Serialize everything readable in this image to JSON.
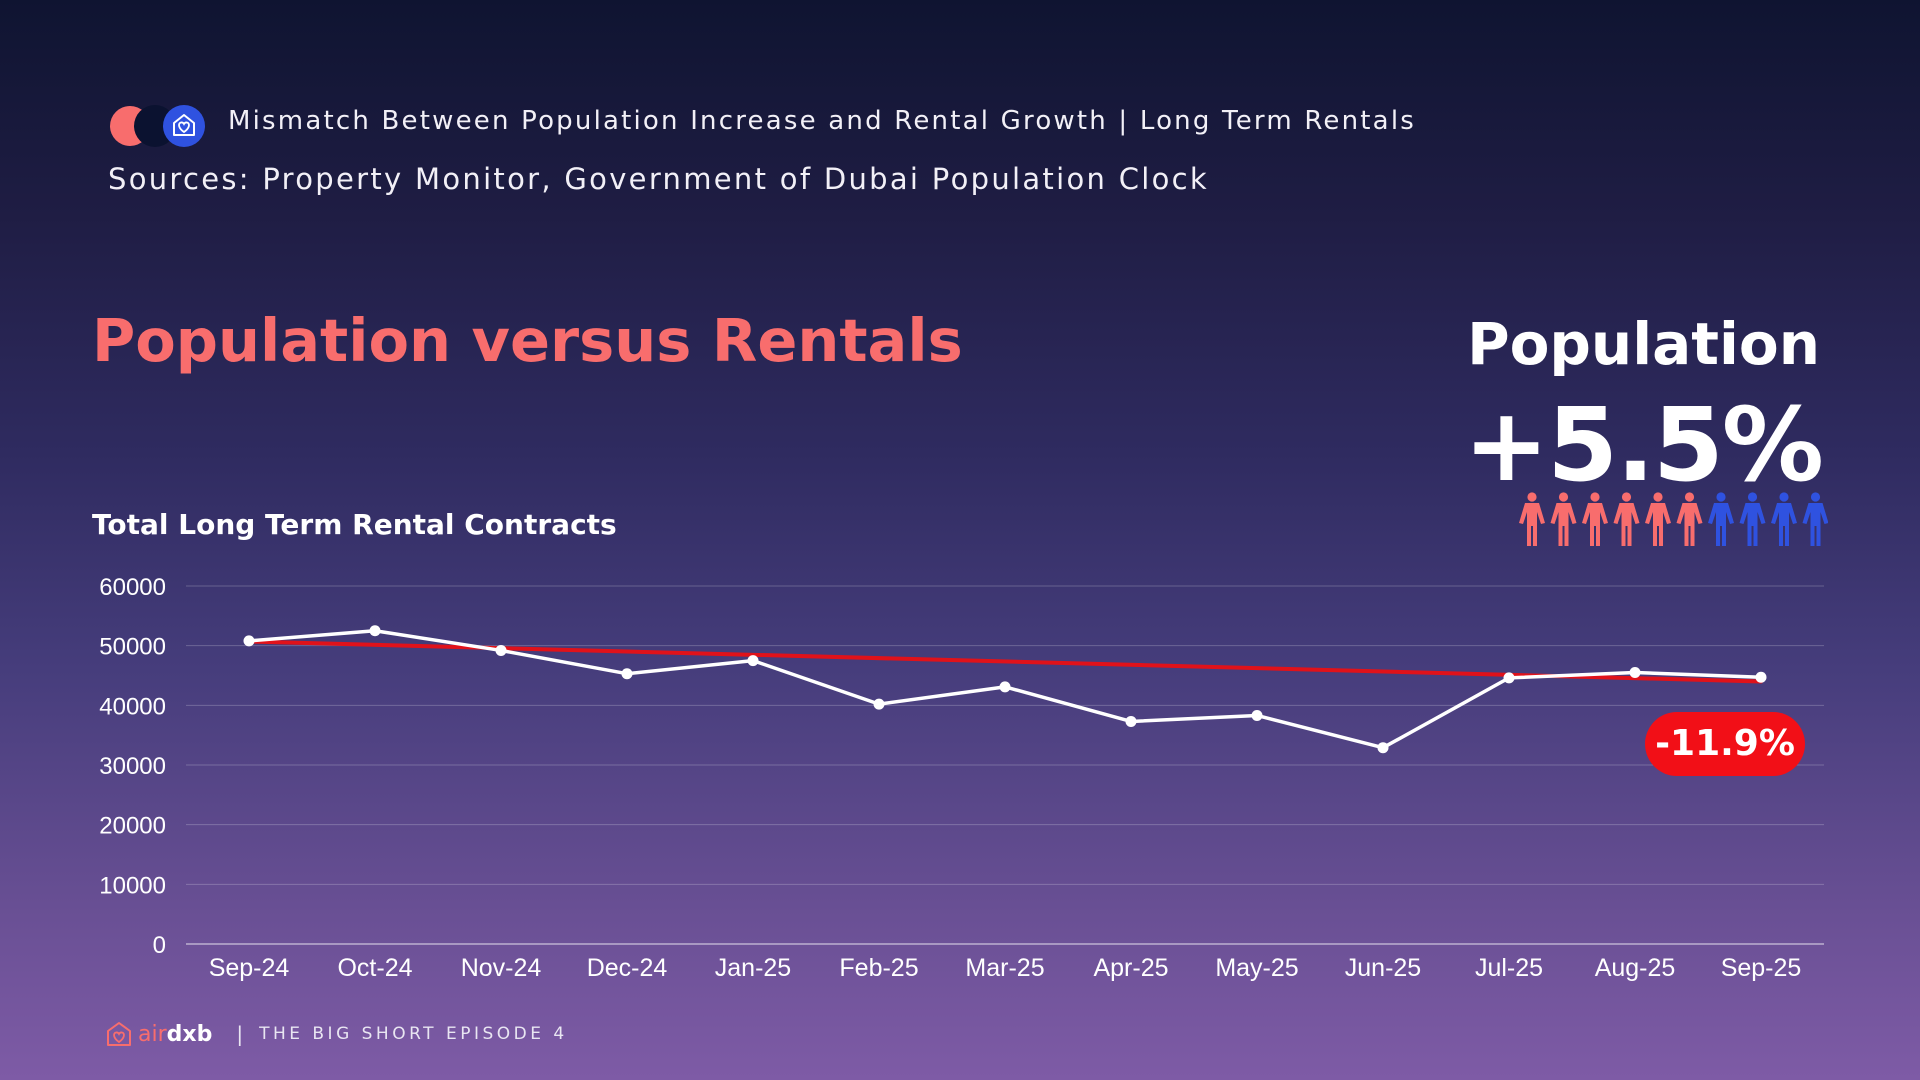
{
  "header": {
    "subtitle": "Mismatch Between Population Increase and Rental Growth | Long Term Rentals",
    "sources": "Sources: Property Monitor, Government of Dubai Population Clock"
  },
  "title": "Population versus Rentals",
  "population": {
    "label": "Population",
    "value": "+5.5%",
    "icons": {
      "highlighted": 6,
      "total": 10,
      "color_highlighted": "#f86d6d",
      "color_rest": "#2f52e0"
    }
  },
  "badge": "-11.9%",
  "footer": {
    "brand_air": "air",
    "brand_dxb": "dxb",
    "separator": "|",
    "episode": "THE BIG SHORT EPISODE 4"
  },
  "colors": {
    "accent": "#f86d6d",
    "trend": "#e0121a",
    "badge": "#f20f17",
    "line": "#ffffff",
    "logo_blue": "#2f52e0"
  },
  "chart_data": {
    "type": "line",
    "title": "Total Long Term Rental Contracts",
    "categories": [
      "Sep-24",
      "Oct-24",
      "Nov-24",
      "Dec-24",
      "Jan-25",
      "Feb-25",
      "Mar-25",
      "Apr-25",
      "May-25",
      "Jun-25",
      "Jul-25",
      "Aug-25",
      "Sep-25"
    ],
    "series": [
      {
        "values": [
          50800,
          52500,
          49200,
          45300,
          47500,
          40200,
          43100,
          37300,
          38300,
          32900,
          44600,
          45500,
          44700
        ],
        "color": "#ffffff",
        "markers": true
      }
    ],
    "trendline": {
      "start": 50700,
      "end": 44000,
      "color": "#e0121a"
    },
    "yticks": [
      0,
      10000,
      20000,
      30000,
      40000,
      50000,
      60000
    ],
    "ylim": [
      0,
      60000
    ],
    "grid": true,
    "xlabel": "",
    "ylabel": ""
  }
}
